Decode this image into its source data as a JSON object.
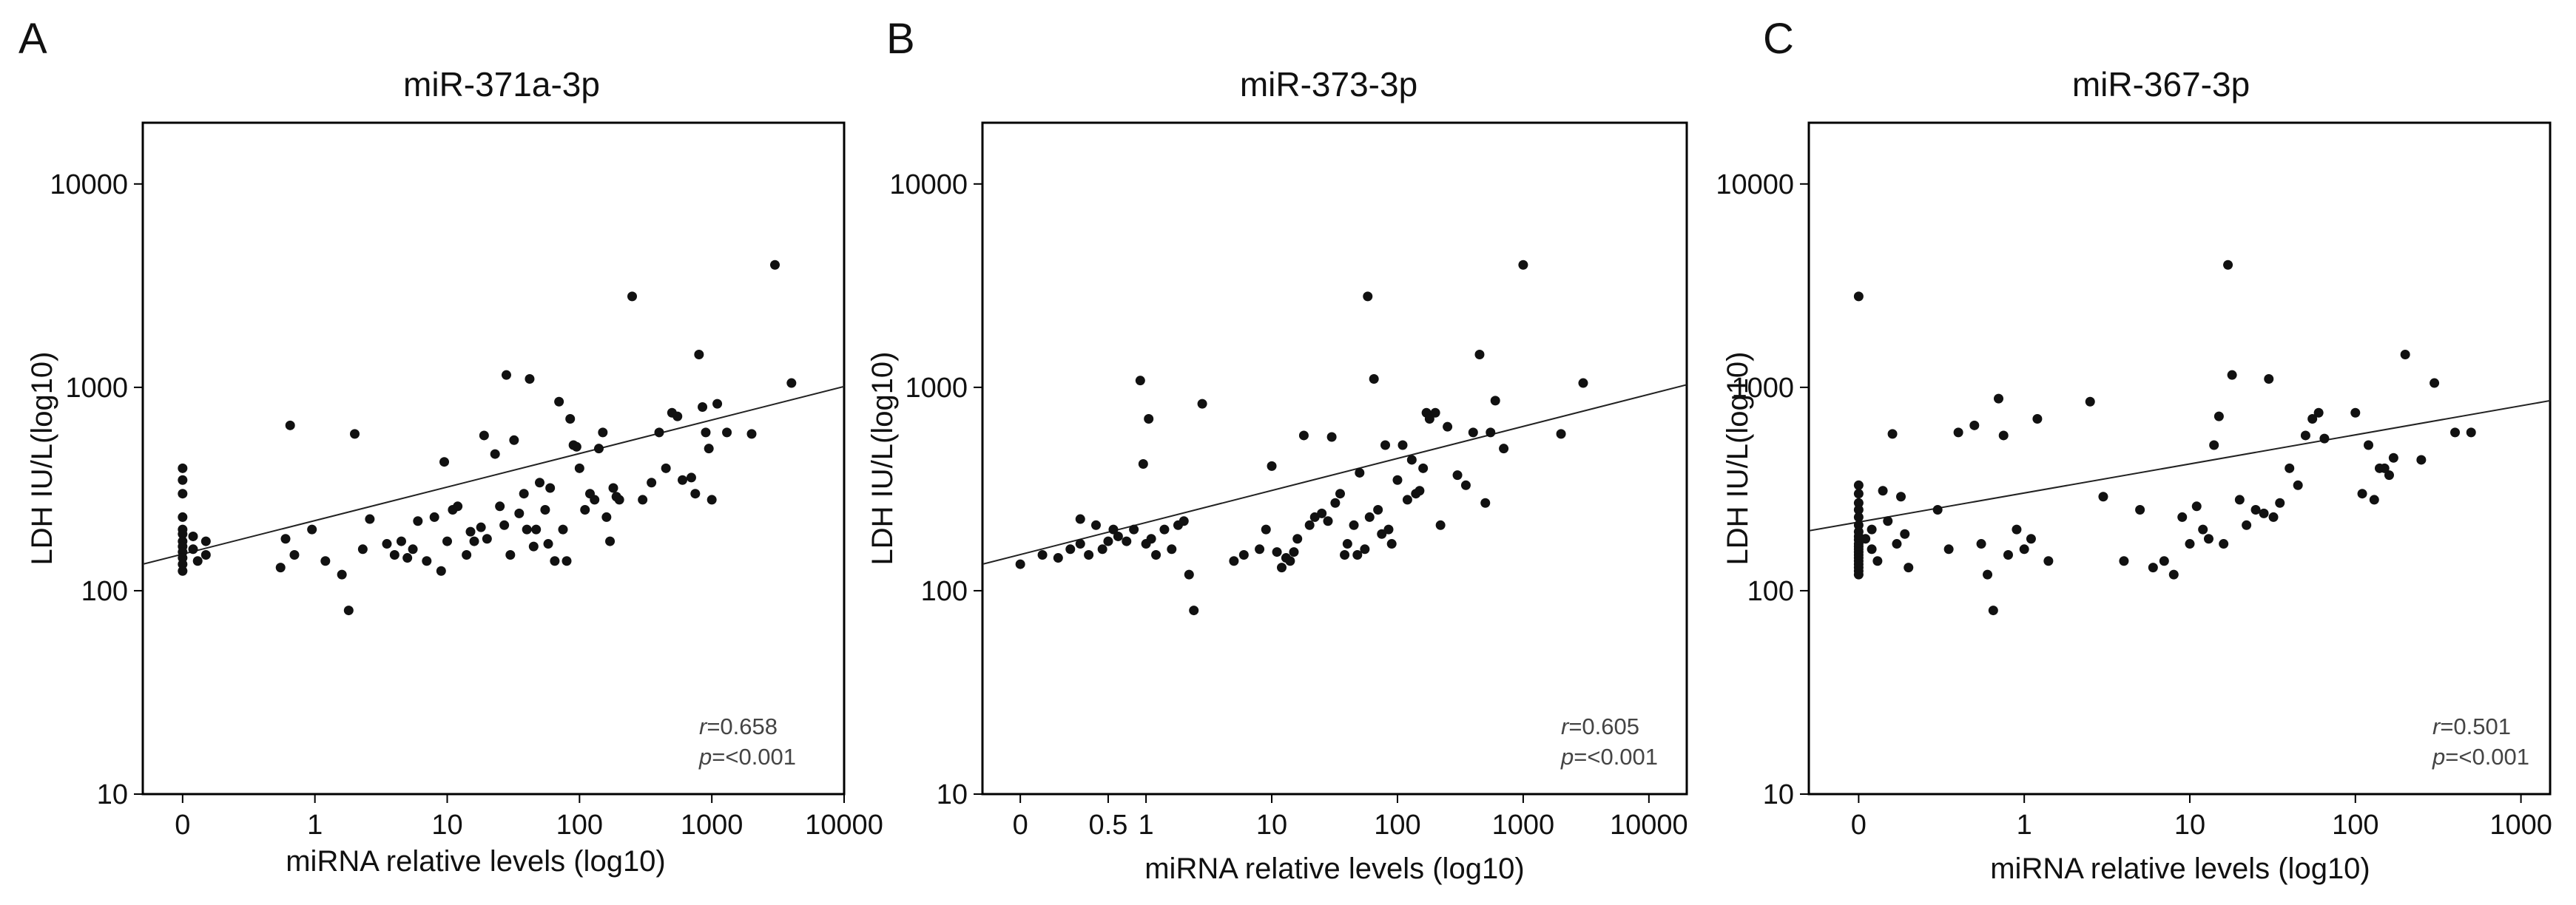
{
  "chart_data": [
    {
      "type": "scatter",
      "panel": "A",
      "title": "miR-371a-3p",
      "xlabel": "miRNA relative levels (log10)",
      "ylabel": "LDH IU/L(log10)",
      "x_scale": "log",
      "y_scale": "log",
      "xlim": [
        0.05,
        10000
      ],
      "ylim": [
        10,
        20000
      ],
      "x_ticks": [
        {
          "label": "0",
          "value": 0.1
        },
        {
          "label": "1",
          "value": 1
        },
        {
          "label": "10",
          "value": 10
        },
        {
          "label": "100",
          "value": 100
        },
        {
          "label": "1000",
          "value": 1000
        },
        {
          "label": "10000",
          "value": 10000
        }
      ],
      "y_ticks": [
        {
          "label": "10",
          "value": 10
        },
        {
          "label": "100",
          "value": 100
        },
        {
          "label": "1000",
          "value": 1000
        },
        {
          "label": "10000",
          "value": 10000
        }
      ],
      "stats": {
        "r_label": "r",
        "r_value": "=0.658",
        "p_label": "p",
        "p_value": "=<0.001"
      },
      "regression": {
        "x": [
          0.05,
          10000
        ],
        "y": [
          135,
          1010
        ]
      },
      "points": [
        [
          0.1,
          400
        ],
        [
          0.1,
          350
        ],
        [
          0.1,
          300
        ],
        [
          0.1,
          230
        ],
        [
          0.1,
          200
        ],
        [
          0.1,
          190
        ],
        [
          0.1,
          175
        ],
        [
          0.1,
          165
        ],
        [
          0.1,
          155
        ],
        [
          0.1,
          145
        ],
        [
          0.1,
          135
        ],
        [
          0.1,
          125
        ],
        [
          0.12,
          185
        ],
        [
          0.12,
          160
        ],
        [
          0.13,
          140
        ],
        [
          0.15,
          150
        ],
        [
          0.15,
          175
        ],
        [
          0.55,
          130
        ],
        [
          0.6,
          180
        ],
        [
          0.65,
          650
        ],
        [
          0.7,
          150
        ],
        [
          0.95,
          200
        ],
        [
          1.2,
          140
        ],
        [
          1.6,
          120
        ],
        [
          1.8,
          80
        ],
        [
          2,
          590
        ],
        [
          2.3,
          160
        ],
        [
          2.6,
          225
        ],
        [
          3.5,
          170
        ],
        [
          4,
          150
        ],
        [
          4.5,
          175
        ],
        [
          5,
          145
        ],
        [
          5.5,
          160
        ],
        [
          6,
          220
        ],
        [
          7,
          140
        ],
        [
          8,
          230
        ],
        [
          9,
          125
        ],
        [
          9.5,
          430
        ],
        [
          10,
          175
        ],
        [
          11,
          250
        ],
        [
          12,
          260
        ],
        [
          14,
          150
        ],
        [
          15,
          195
        ],
        [
          16,
          175
        ],
        [
          18,
          205
        ],
        [
          19,
          580
        ],
        [
          20,
          180
        ],
        [
          23,
          470
        ],
        [
          25,
          260
        ],
        [
          27,
          210
        ],
        [
          28,
          1150
        ],
        [
          30,
          150
        ],
        [
          32,
          550
        ],
        [
          35,
          240
        ],
        [
          38,
          300
        ],
        [
          40,
          200
        ],
        [
          42,
          1100
        ],
        [
          45,
          165
        ],
        [
          47,
          200
        ],
        [
          50,
          340
        ],
        [
          55,
          250
        ],
        [
          58,
          170
        ],
        [
          60,
          320
        ],
        [
          65,
          140
        ],
        [
          70,
          850
        ],
        [
          75,
          200
        ],
        [
          80,
          140
        ],
        [
          85,
          700
        ],
        [
          90,
          520
        ],
        [
          95,
          510
        ],
        [
          100,
          400
        ],
        [
          110,
          250
        ],
        [
          120,
          300
        ],
        [
          130,
          280
        ],
        [
          140,
          500
        ],
        [
          150,
          600
        ],
        [
          160,
          230
        ],
        [
          170,
          175
        ],
        [
          180,
          320
        ],
        [
          190,
          290
        ],
        [
          200,
          280
        ],
        [
          250,
          2800
        ],
        [
          300,
          280
        ],
        [
          350,
          340
        ],
        [
          400,
          600
        ],
        [
          450,
          400
        ],
        [
          500,
          750
        ],
        [
          550,
          720
        ],
        [
          600,
          350
        ],
        [
          700,
          360
        ],
        [
          750,
          300
        ],
        [
          800,
          1450
        ],
        [
          850,
          800
        ],
        [
          900,
          600
        ],
        [
          950,
          500
        ],
        [
          1000,
          280
        ],
        [
          1100,
          830
        ],
        [
          1300,
          600
        ],
        [
          2000,
          590
        ],
        [
          3000,
          4000
        ],
        [
          4000,
          1050
        ]
      ]
    },
    {
      "type": "scatter",
      "panel": "B",
      "title": "miR-373-3p",
      "xlabel": "miRNA relative levels (log10)",
      "ylabel": "LDH IU/L(log10)",
      "x_scale": "log",
      "y_scale": "log",
      "xlim": [
        0.05,
        20000
      ],
      "ylim": [
        10,
        20000
      ],
      "x_ticks": [
        {
          "label": "0",
          "value": 0.1
        },
        {
          "label": "0.5",
          "value": 0.5
        },
        {
          "label": "1",
          "value": 1
        },
        {
          "label": "10",
          "value": 10
        },
        {
          "label": "100",
          "value": 100
        },
        {
          "label": "1000",
          "value": 1000
        },
        {
          "label": "10000",
          "value": 10000
        }
      ],
      "y_ticks": [
        {
          "label": "10",
          "value": 10
        },
        {
          "label": "100",
          "value": 100
        },
        {
          "label": "1000",
          "value": 1000
        },
        {
          "label": "10000",
          "value": 10000
        }
      ],
      "stats": {
        "r_label": "r",
        "r_value": "=0.605",
        "p_label": "p",
        "p_value": "=<0.001"
      },
      "regression": {
        "x": [
          0.05,
          20000
        ],
        "y": [
          135,
          1030
        ]
      },
      "points": [
        [
          0.1,
          135
        ],
        [
          0.15,
          150
        ],
        [
          0.2,
          145
        ],
        [
          0.25,
          160
        ],
        [
          0.3,
          170
        ],
        [
          0.3,
          225
        ],
        [
          0.35,
          150
        ],
        [
          0.4,
          210
        ],
        [
          0.45,
          160
        ],
        [
          0.5,
          175
        ],
        [
          0.55,
          200
        ],
        [
          0.6,
          185
        ],
        [
          0.7,
          175
        ],
        [
          0.8,
          200
        ],
        [
          0.9,
          1080
        ],
        [
          0.95,
          420
        ],
        [
          1,
          170
        ],
        [
          1.05,
          700
        ],
        [
          1.1,
          180
        ],
        [
          1.2,
          150
        ],
        [
          1.4,
          200
        ],
        [
          1.6,
          160
        ],
        [
          1.8,
          210
        ],
        [
          2,
          220
        ],
        [
          2.2,
          120
        ],
        [
          2.4,
          80
        ],
        [
          2.8,
          830
        ],
        [
          5,
          140
        ],
        [
          6,
          150
        ],
        [
          8,
          160
        ],
        [
          9,
          200
        ],
        [
          10,
          410
        ],
        [
          11,
          155
        ],
        [
          12,
          130
        ],
        [
          13,
          145
        ],
        [
          14,
          140
        ],
        [
          15,
          155
        ],
        [
          16,
          180
        ],
        [
          18,
          580
        ],
        [
          20,
          210
        ],
        [
          22,
          230
        ],
        [
          25,
          240
        ],
        [
          28,
          220
        ],
        [
          30,
          570
        ],
        [
          32,
          270
        ],
        [
          35,
          300
        ],
        [
          38,
          150
        ],
        [
          40,
          170
        ],
        [
          45,
          210
        ],
        [
          48,
          150
        ],
        [
          50,
          380
        ],
        [
          55,
          160
        ],
        [
          58,
          2800
        ],
        [
          60,
          230
        ],
        [
          65,
          1100
        ],
        [
          70,
          250
        ],
        [
          75,
          190
        ],
        [
          80,
          520
        ],
        [
          85,
          200
        ],
        [
          90,
          170
        ],
        [
          100,
          350
        ],
        [
          110,
          520
        ],
        [
          120,
          280
        ],
        [
          130,
          440
        ],
        [
          140,
          300
        ],
        [
          150,
          310
        ],
        [
          160,
          400
        ],
        [
          170,
          750
        ],
        [
          180,
          700
        ],
        [
          200,
          750
        ],
        [
          220,
          210
        ],
        [
          250,
          640
        ],
        [
          300,
          370
        ],
        [
          350,
          330
        ],
        [
          400,
          600
        ],
        [
          450,
          1450
        ],
        [
          500,
          270
        ],
        [
          550,
          600
        ],
        [
          600,
          860
        ],
        [
          700,
          500
        ],
        [
          1000,
          4000
        ],
        [
          2000,
          590
        ],
        [
          3000,
          1050
        ]
      ]
    },
    {
      "type": "scatter",
      "panel": "C",
      "title": "miR-367-3p",
      "xlabel": "miRNA relative levels (log10)",
      "ylabel": "LDH IU/L(log10)",
      "x_scale": "log",
      "y_scale": "log",
      "xlim": [
        0.05,
        1500
      ],
      "ylim": [
        10,
        20000
      ],
      "x_ticks": [
        {
          "label": "0",
          "value": 0.1
        },
        {
          "label": "1",
          "value": 1
        },
        {
          "label": "10",
          "value": 10
        },
        {
          "label": "100",
          "value": 100
        },
        {
          "label": "1000",
          "value": 1000
        }
      ],
      "y_ticks": [
        {
          "label": "10",
          "value": 10
        },
        {
          "label": "100",
          "value": 100
        },
        {
          "label": "1000",
          "value": 1000
        },
        {
          "label": "10000",
          "value": 10000
        }
      ],
      "stats": {
        "r_label": "r",
        "r_value": "=0.501",
        "p_label": "p",
        "p_value": "=<0.001"
      },
      "regression": {
        "x": [
          0.05,
          1500
        ],
        "y": [
          197,
          860
        ]
      },
      "points": [
        [
          0.1,
          2800
        ],
        [
          0.1,
          330
        ],
        [
          0.1,
          300
        ],
        [
          0.1,
          270
        ],
        [
          0.1,
          250
        ],
        [
          0.1,
          230
        ],
        [
          0.1,
          210
        ],
        [
          0.1,
          195
        ],
        [
          0.1,
          185
        ],
        [
          0.1,
          178
        ],
        [
          0.1,
          170
        ],
        [
          0.1,
          165
        ],
        [
          0.1,
          160
        ],
        [
          0.1,
          155
        ],
        [
          0.1,
          150
        ],
        [
          0.1,
          145
        ],
        [
          0.1,
          140
        ],
        [
          0.1,
          135
        ],
        [
          0.1,
          130
        ],
        [
          0.1,
          125
        ],
        [
          0.1,
          120
        ],
        [
          0.11,
          180
        ],
        [
          0.12,
          200
        ],
        [
          0.12,
          160
        ],
        [
          0.13,
          140
        ],
        [
          0.14,
          310
        ],
        [
          0.15,
          220
        ],
        [
          0.16,
          590
        ],
        [
          0.17,
          170
        ],
        [
          0.18,
          290
        ],
        [
          0.19,
          190
        ],
        [
          0.2,
          130
        ],
        [
          0.3,
          250
        ],
        [
          0.35,
          160
        ],
        [
          0.4,
          600
        ],
        [
          0.5,
          650
        ],
        [
          0.55,
          170
        ],
        [
          0.6,
          120
        ],
        [
          0.65,
          80
        ],
        [
          0.7,
          880
        ],
        [
          0.75,
          580
        ],
        [
          0.8,
          150
        ],
        [
          0.9,
          200
        ],
        [
          1,
          160
        ],
        [
          1.1,
          180
        ],
        [
          1.2,
          700
        ],
        [
          1.4,
          140
        ],
        [
          2.5,
          850
        ],
        [
          3,
          290
        ],
        [
          4,
          140
        ],
        [
          5,
          250
        ],
        [
          6,
          130
        ],
        [
          7,
          140
        ],
        [
          8,
          120
        ],
        [
          9,
          230
        ],
        [
          10,
          170
        ],
        [
          11,
          260
        ],
        [
          12,
          200
        ],
        [
          13,
          180
        ],
        [
          14,
          520
        ],
        [
          15,
          720
        ],
        [
          16,
          170
        ],
        [
          17,
          4000
        ],
        [
          18,
          1150
        ],
        [
          20,
          280
        ],
        [
          22,
          210
        ],
        [
          25,
          250
        ],
        [
          28,
          240
        ],
        [
          30,
          1100
        ],
        [
          32,
          230
        ],
        [
          35,
          270
        ],
        [
          40,
          400
        ],
        [
          45,
          330
        ],
        [
          50,
          580
        ],
        [
          55,
          700
        ],
        [
          60,
          750
        ],
        [
          65,
          560
        ],
        [
          100,
          750
        ],
        [
          110,
          300
        ],
        [
          120,
          520
        ],
        [
          130,
          280
        ],
        [
          140,
          400
        ],
        [
          150,
          400
        ],
        [
          160,
          370
        ],
        [
          170,
          450
        ],
        [
          200,
          1450
        ],
        [
          250,
          440
        ],
        [
          300,
          1050
        ],
        [
          400,
          600
        ],
        [
          500,
          600
        ]
      ]
    }
  ]
}
